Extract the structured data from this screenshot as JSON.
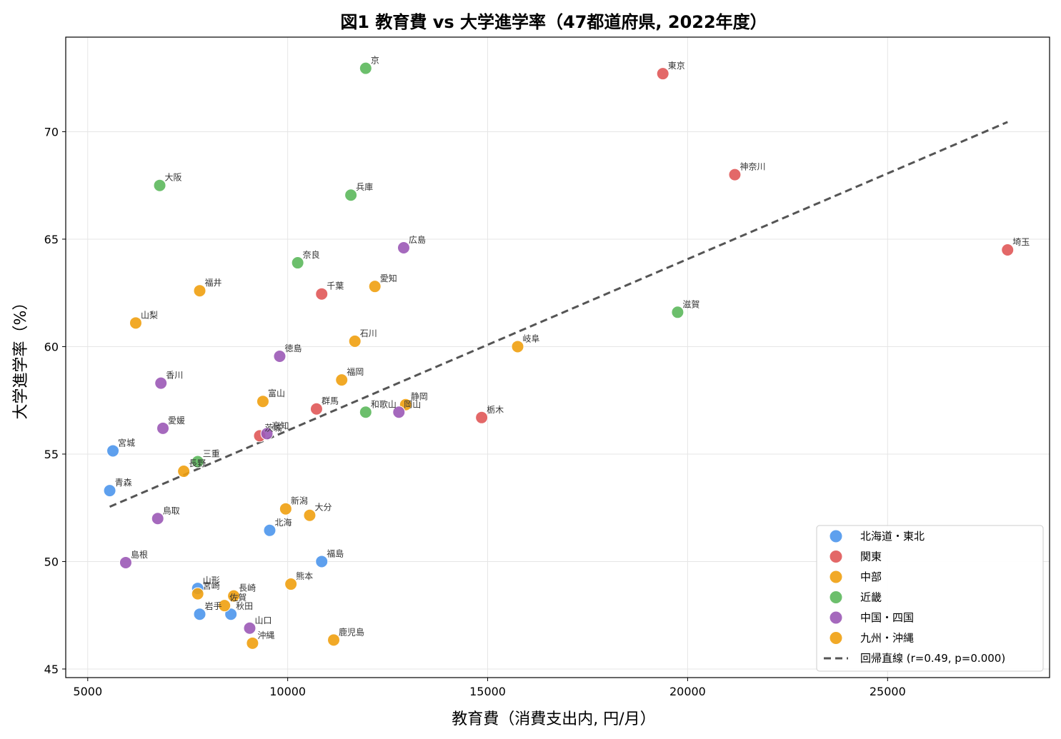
{
  "chart_data": {
    "type": "scatter",
    "title": "図1 教育費 vs 大学進学率（47都道府県, 2022年度）",
    "xlabel": "教育費（消費支出内, 円/月）",
    "ylabel": "大学進学率（%）",
    "xlim": [
      4450,
      29050
    ],
    "ylim": [
      44.6,
      74.4
    ],
    "xticks": [
      5000,
      10000,
      15000,
      20000,
      25000
    ],
    "yticks": [
      45,
      50,
      55,
      60,
      65,
      70
    ],
    "grid": true,
    "legend_position": "lower-right",
    "groups": [
      {
        "name": "北海道・東北",
        "color": "#4C96EC"
      },
      {
        "name": "関東",
        "color": "#E05858"
      },
      {
        "name": "中部",
        "color": "#F0A010"
      },
      {
        "name": "近畿",
        "color": "#5CB85C"
      },
      {
        "name": "中国・四国",
        "color": "#9B59B6"
      },
      {
        "name": "九州・沖縄",
        "color": "#F0A010"
      }
    ],
    "points": [
      {
        "label": "北海",
        "x": 9550,
        "y": 51.45,
        "group": 0
      },
      {
        "label": "青森",
        "x": 5550,
        "y": 53.3,
        "group": 0
      },
      {
        "label": "岩手",
        "x": 7800,
        "y": 47.55,
        "group": 0
      },
      {
        "label": "宮城",
        "x": 5630,
        "y": 55.15,
        "group": 0
      },
      {
        "label": "秋田",
        "x": 8580,
        "y": 47.55,
        "group": 0
      },
      {
        "label": "山形",
        "x": 7750,
        "y": 48.75,
        "group": 0
      },
      {
        "label": "福島",
        "x": 10850,
        "y": 50.0,
        "group": 0
      },
      {
        "label": "茨城",
        "x": 9300,
        "y": 55.85,
        "group": 1
      },
      {
        "label": "栃木",
        "x": 14850,
        "y": 56.7,
        "group": 1
      },
      {
        "label": "群馬",
        "x": 10720,
        "y": 57.1,
        "group": 1
      },
      {
        "label": "埼玉",
        "x": 28000,
        "y": 64.5,
        "group": 1
      },
      {
        "label": "千葉",
        "x": 10850,
        "y": 62.45,
        "group": 1
      },
      {
        "label": "東京",
        "x": 19380,
        "y": 72.7,
        "group": 1
      },
      {
        "label": "神奈川",
        "x": 21180,
        "y": 68.0,
        "group": 1
      },
      {
        "label": "新潟",
        "x": 9950,
        "y": 52.45,
        "group": 2
      },
      {
        "label": "富山",
        "x": 9380,
        "y": 57.45,
        "group": 2
      },
      {
        "label": "石川",
        "x": 11680,
        "y": 60.25,
        "group": 2
      },
      {
        "label": "福井",
        "x": 7800,
        "y": 62.6,
        "group": 2
      },
      {
        "label": "山梨",
        "x": 6200,
        "y": 61.1,
        "group": 2
      },
      {
        "label": "長野",
        "x": 7400,
        "y": 54.2,
        "group": 2
      },
      {
        "label": "岐阜",
        "x": 15750,
        "y": 60.0,
        "group": 2
      },
      {
        "label": "静岡",
        "x": 12950,
        "y": 57.3,
        "group": 2
      },
      {
        "label": "愛知",
        "x": 12180,
        "y": 62.8,
        "group": 2
      },
      {
        "label": "三重",
        "x": 7750,
        "y": 54.65,
        "group": 3
      },
      {
        "label": "滋賀",
        "x": 19750,
        "y": 61.6,
        "group": 3
      },
      {
        "label": "京",
        "x": 11950,
        "y": 72.95,
        "group": 3
      },
      {
        "label": "大阪",
        "x": 6800,
        "y": 67.5,
        "group": 3
      },
      {
        "label": "兵庫",
        "x": 11580,
        "y": 67.05,
        "group": 3
      },
      {
        "label": "奈良",
        "x": 10250,
        "y": 63.9,
        "group": 3
      },
      {
        "label": "和歌山",
        "x": 11950,
        "y": 56.95,
        "group": 3
      },
      {
        "label": "鳥取",
        "x": 6750,
        "y": 52.0,
        "group": 4
      },
      {
        "label": "島根",
        "x": 5950,
        "y": 49.95,
        "group": 4
      },
      {
        "label": "岡山",
        "x": 12780,
        "y": 56.95,
        "group": 4
      },
      {
        "label": "広島",
        "x": 12900,
        "y": 64.6,
        "group": 4
      },
      {
        "label": "山口",
        "x": 9050,
        "y": 46.9,
        "group": 4
      },
      {
        "label": "徳島",
        "x": 9800,
        "y": 59.55,
        "group": 4
      },
      {
        "label": "香川",
        "x": 6830,
        "y": 58.3,
        "group": 4
      },
      {
        "label": "愛媛",
        "x": 6880,
        "y": 56.2,
        "group": 4
      },
      {
        "label": "高知",
        "x": 9480,
        "y": 55.95,
        "group": 4
      },
      {
        "label": "福岡",
        "x": 11350,
        "y": 58.45,
        "group": 5
      },
      {
        "label": "佐賀",
        "x": 8420,
        "y": 47.95,
        "group": 5
      },
      {
        "label": "長崎",
        "x": 8650,
        "y": 48.4,
        "group": 5
      },
      {
        "label": "熊本",
        "x": 10080,
        "y": 48.95,
        "group": 5
      },
      {
        "label": "大分",
        "x": 10550,
        "y": 52.15,
        "group": 5
      },
      {
        "label": "宮崎",
        "x": 7750,
        "y": 48.5,
        "group": 5
      },
      {
        "label": "鹿児島",
        "x": 11150,
        "y": 46.35,
        "group": 5
      },
      {
        "label": "沖縄",
        "x": 9120,
        "y": 46.2,
        "group": 5
      }
    ],
    "regression": {
      "label": "回帰直線 (r=0.49, p=0.000)",
      "x": [
        5550,
        28000
      ],
      "y": [
        52.55,
        70.45
      ],
      "color": "#555555"
    }
  }
}
